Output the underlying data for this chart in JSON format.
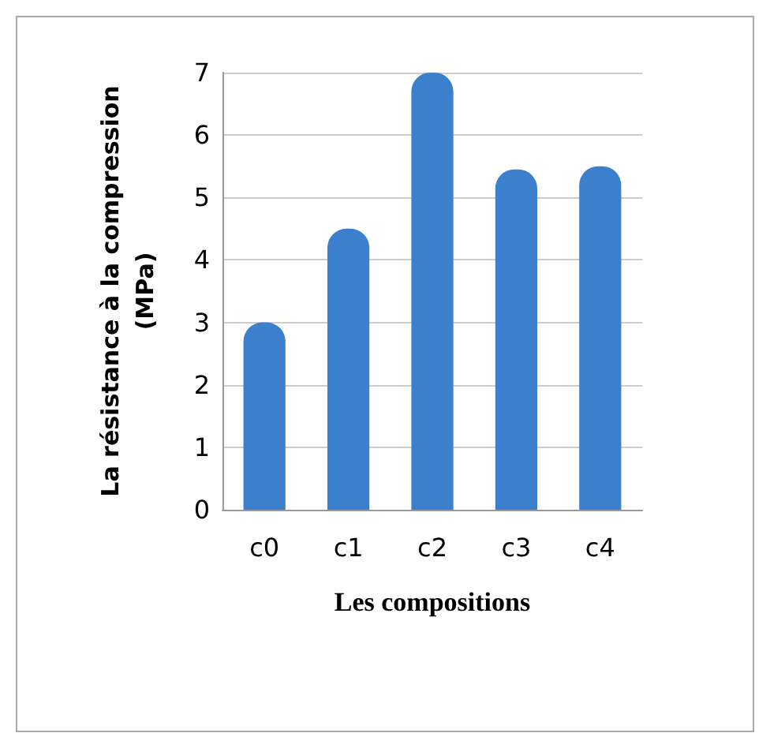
{
  "chart_data": {
    "type": "bar",
    "ylabel": "La résistance à la compression\n(MPa)",
    "xlabel": "Les compositions",
    "categories": [
      "c0",
      "c1",
      "c2",
      "c3",
      "c4"
    ],
    "values": [
      3.0,
      4.5,
      7.0,
      5.45,
      5.5
    ],
    "color": "#3c7fcc",
    "ylim": [
      0,
      7
    ],
    "yticks": [
      0,
      1,
      2,
      3,
      4,
      5,
      6,
      7
    ],
    "grid": "y"
  }
}
